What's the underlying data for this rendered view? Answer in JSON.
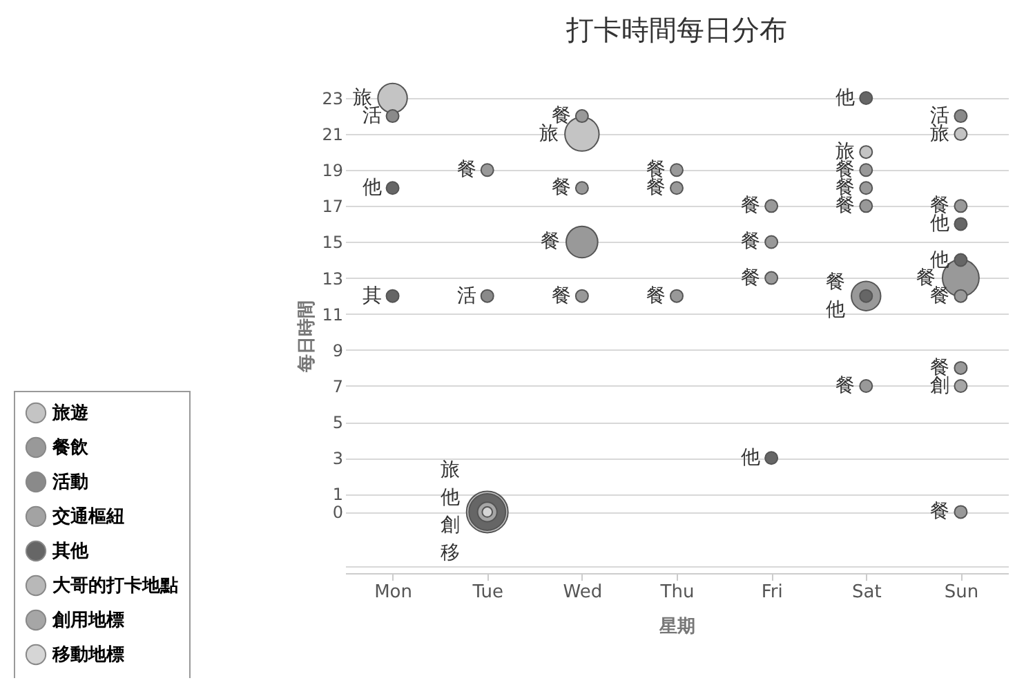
{
  "chart_data": {
    "type": "bubble",
    "title": "打卡時間每日分布",
    "xlabel": "星期",
    "ylabel": "每日時間",
    "categories": [
      "Mon",
      "Tue",
      "Wed",
      "Thu",
      "Fri",
      "Sat",
      "Sun"
    ],
    "ylim": [
      -3.4,
      23
    ],
    "yticks": [
      {
        "value": -3,
        "label": null
      },
      0,
      1,
      3,
      5,
      7,
      9,
      11,
      13,
      15,
      17,
      19,
      21,
      23
    ],
    "grid": "y",
    "legend": "bottom left",
    "series": [
      {
        "name": "旅遊",
        "color": "#c4c4c4",
        "x": [
          "Mon",
          "Tue",
          "Wed",
          "Sat",
          "Sun"
        ],
        "values": [
          23,
          0,
          21,
          20,
          21
        ],
        "sizes": [
          0.5,
          1,
          0.68,
          0.09,
          0.09
        ],
        "value_labels": [
          "旅",
          "旅",
          "旅",
          "旅",
          "旅"
        ]
      },
      {
        "name": "餐飲",
        "color": "#999999",
        "x": [
          "Tue",
          "Wed",
          "Wed",
          "Wed",
          "Wed",
          "Thu",
          "Thu",
          "Thu",
          "Fri",
          "Fri",
          "Fri",
          "Sat",
          "Sat",
          "Sat",
          "Sat",
          "Sat",
          "Sun",
          "Sun",
          "Sun",
          "Sun",
          "Sun"
        ],
        "values": [
          19,
          22,
          18,
          15,
          12,
          19,
          18,
          12,
          17,
          15,
          13,
          19,
          18,
          17,
          12,
          7,
          17,
          13,
          12,
          8,
          0
        ],
        "sizes": [
          0.09,
          0.09,
          0.09,
          0.58,
          0.09,
          0.09,
          0.09,
          0.09,
          0.09,
          0.09,
          0.09,
          0.09,
          0.09,
          0.09,
          0.5,
          0.09,
          0.09,
          0.78,
          0.09,
          0.09,
          0.09
        ],
        "value_labels": [
          "餐",
          "餐",
          "餐",
          "餐",
          "餐",
          "餐",
          "餐",
          "餐",
          "餐",
          "餐",
          "餐",
          "餐",
          "餐",
          "餐",
          "餐",
          "餐",
          "餐",
          "餐",
          "餐",
          "餐",
          "餐"
        ]
      },
      {
        "name": "活動",
        "color": "#8a8a8a",
        "x": [
          "Mon",
          "Tue",
          "Sun"
        ],
        "values": [
          22,
          12,
          22
        ],
        "sizes": [
          0.09,
          0.09,
          0.09
        ],
        "value_labels": [
          "活",
          "活",
          "活"
        ]
      },
      {
        "name": "交通樞紐",
        "color": "#a3a3a3",
        "values": [
          null,
          null,
          null,
          null,
          null,
          null,
          null
        ]
      },
      {
        "name": "其他",
        "color": "#666666",
        "x": [
          "Mon",
          "Mon",
          "Tue",
          "Fri",
          "Sat",
          "Sat",
          "Sun",
          "Sun"
        ],
        "values": [
          18,
          12,
          0,
          3,
          23,
          12,
          16,
          14
        ],
        "sizes": [
          0.09,
          0.09,
          0.78,
          0.09,
          0.09,
          0.09,
          0.09,
          0.09
        ],
        "value_labels": [
          "他",
          "其",
          "他",
          "他",
          "他",
          "他",
          "他",
          "他"
        ]
      },
      {
        "name": "大哥的打卡地點",
        "color": "#b8b8b8",
        "values": [
          null,
          null,
          null,
          null,
          null,
          null,
          null
        ]
      },
      {
        "name": "創用地標",
        "color": "#a6a6a6",
        "x": [
          "Tue",
          "Sun"
        ],
        "values": [
          0,
          7
        ],
        "sizes": [
          0.22,
          0.09
        ],
        "value_labels": [
          "創",
          "創"
        ]
      },
      {
        "name": "移動地標",
        "color": "#d6d6d6",
        "x": [
          "Tue"
        ],
        "values": [
          0
        ],
        "sizes": [
          0.06
        ],
        "value_labels": [
          "移"
        ]
      }
    ]
  }
}
